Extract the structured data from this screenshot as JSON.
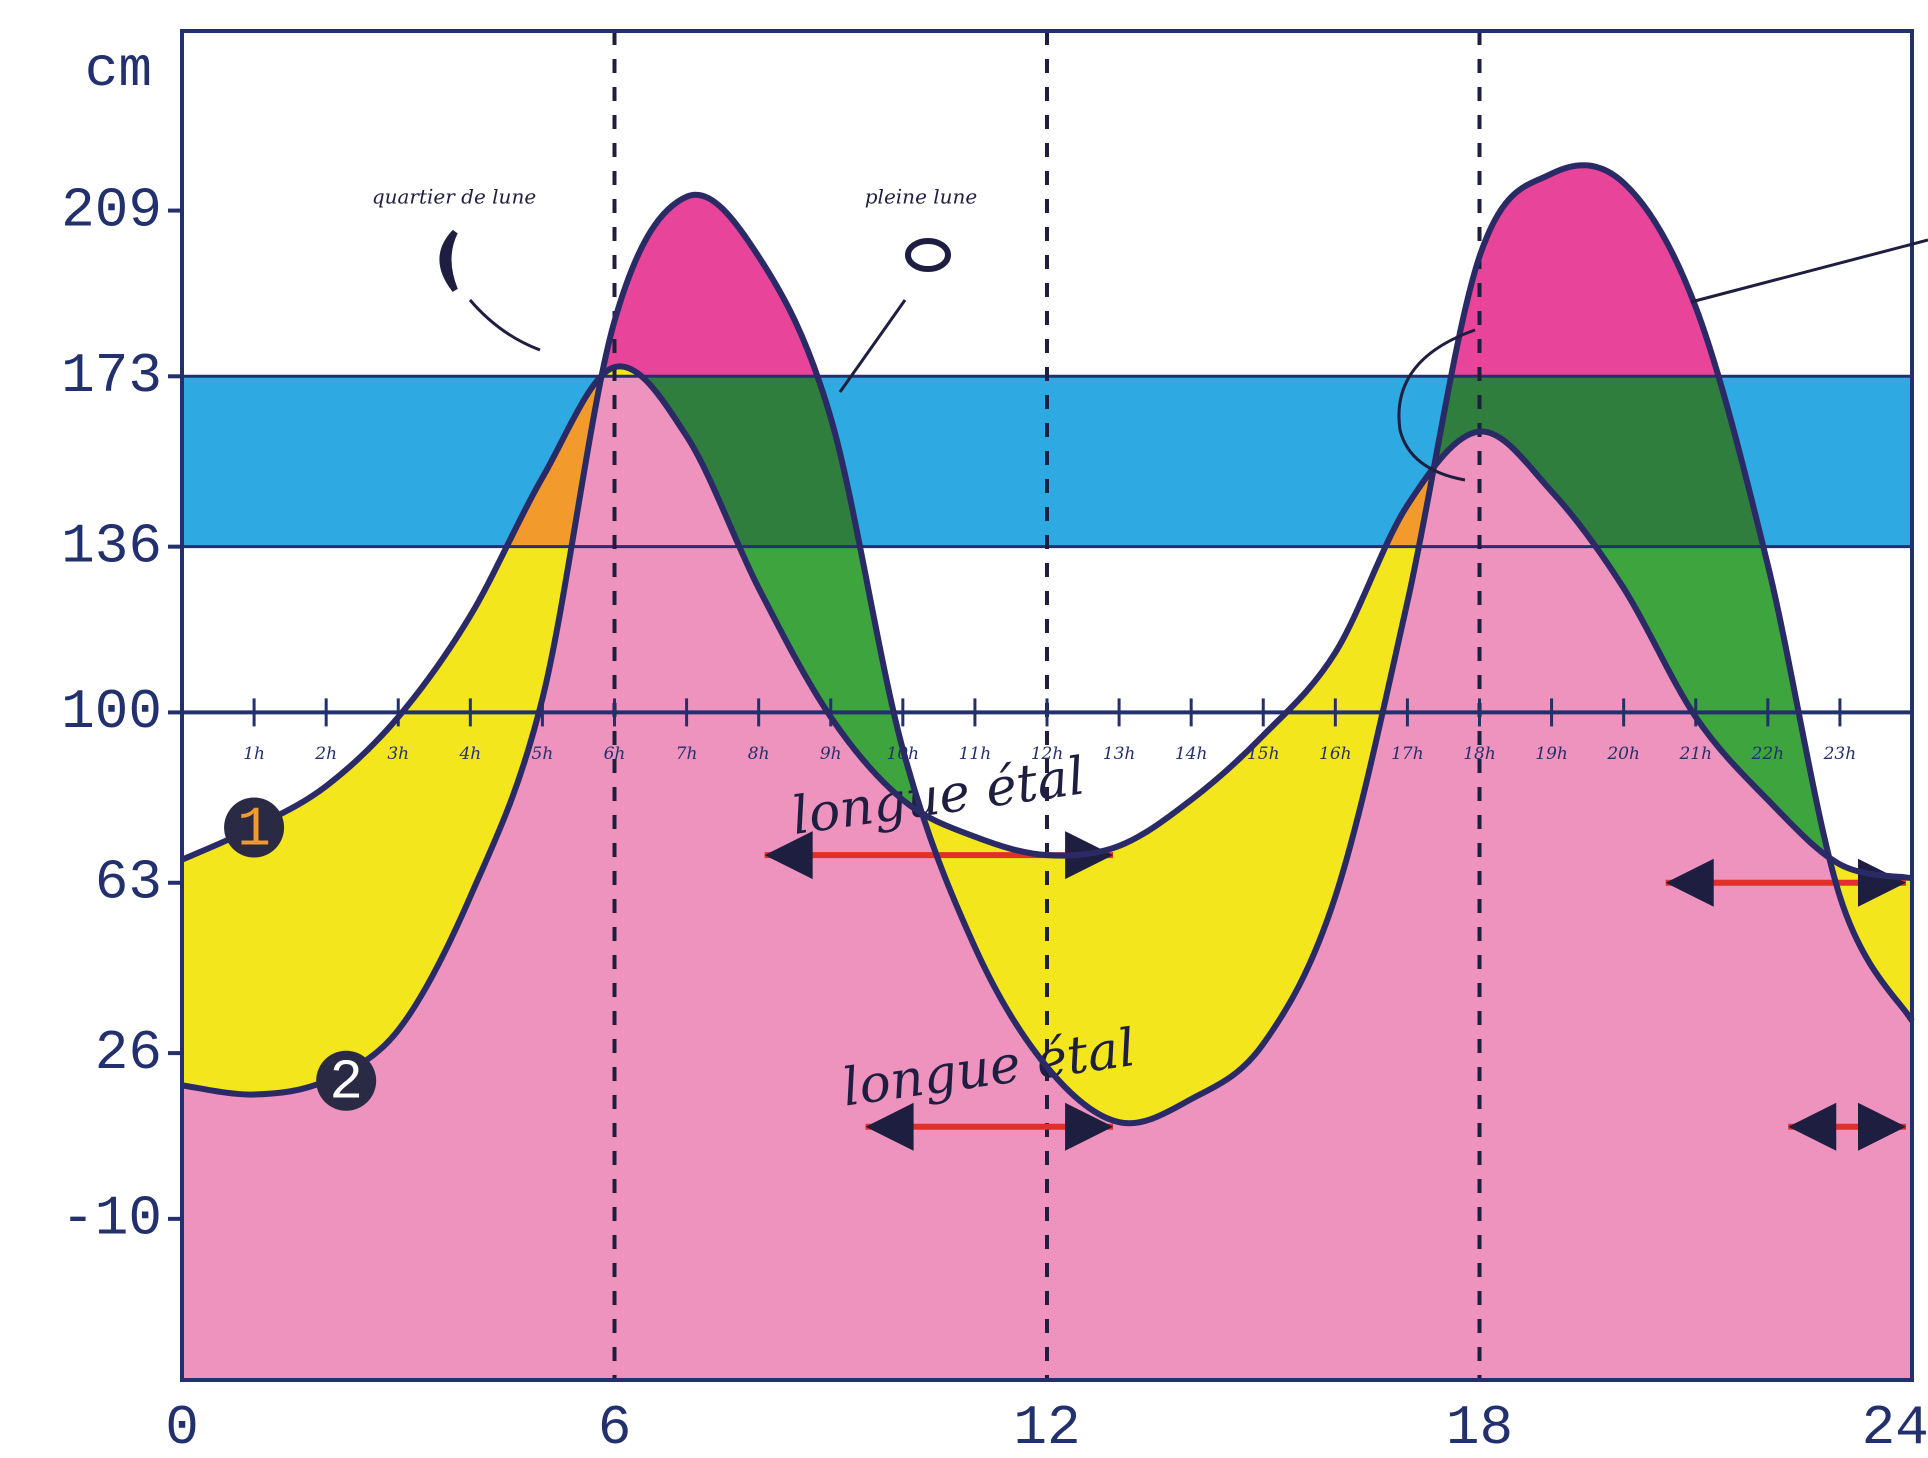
{
  "chart_data": {
    "type": "line",
    "y_label": "cm",
    "x": [
      0,
      1,
      2,
      3,
      4,
      5,
      6,
      7,
      8,
      9,
      10,
      11,
      12,
      13,
      14,
      15,
      16,
      17,
      18,
      19,
      20,
      21,
      22,
      23,
      24
    ],
    "series": [
      {
        "name": "1",
        "color": "#2a2a66",
        "values": [
          68,
          75,
          84,
          99,
          121,
          151,
          175,
          160,
          127,
          99,
          81,
          73,
          69,
          71,
          81,
          95,
          113,
          145,
          161,
          148,
          127,
          99,
          81,
          67,
          64
        ]
      },
      {
        "name": "2",
        "color": "#2a2a66",
        "values": [
          19,
          17,
          20,
          31,
          60,
          103,
          185,
          212,
          199,
          164,
          92,
          49,
          23,
          11,
          16,
          28,
          60,
          124,
          199,
          217,
          215,
          188,
          132,
          60,
          33
        ]
      }
    ],
    "xlim": [
      0,
      24
    ],
    "ylim": [
      -45,
      248
    ],
    "xticks": [
      0,
      6,
      12,
      18,
      {
        "value": 24,
        "label": "24h"
      }
    ],
    "yticks": [
      -10,
      26,
      63,
      100,
      136,
      173,
      209
    ],
    "minor_xticks": [
      {
        "value": 1,
        "label": "1h"
      },
      {
        "value": 2,
        "label": "2h"
      },
      {
        "value": 3,
        "label": "3h"
      },
      {
        "value": 4,
        "label": "4h"
      },
      {
        "value": 5,
        "label": "5h"
      },
      {
        "value": 6,
        "label": "6h"
      },
      {
        "value": 7,
        "label": "7h"
      },
      {
        "value": 8,
        "label": "8h"
      },
      {
        "value": 9,
        "label": "9h"
      },
      {
        "value": 10,
        "label": "10h"
      },
      {
        "value": 11,
        "label": "11h"
      },
      {
        "value": 12,
        "label": "12h"
      },
      {
        "value": 13,
        "label": "13h"
      },
      {
        "value": 14,
        "label": "14h"
      },
      {
        "value": 15,
        "label": "15h"
      },
      {
        "value": 16,
        "label": "16h"
      },
      {
        "value": 17,
        "label": "17h"
      },
      {
        "value": 18,
        "label": "18h"
      },
      {
        "value": 19,
        "label": "19h"
      },
      {
        "value": 20,
        "label": "20h"
      },
      {
        "value": 21,
        "label": "21h"
      },
      {
        "value": 22,
        "label": "22h"
      },
      {
        "value": 23,
        "label": "23h"
      }
    ],
    "reference_line": 100,
    "band": {
      "from": 136,
      "to": 173,
      "color": "#2fa9e1"
    },
    "slack_periods": [
      {
        "label": "longue étal",
        "from": 8,
        "to": 13,
        "level": 69
      },
      {
        "label": "longue étal",
        "from": 9.4,
        "to": 13,
        "level": 10
      },
      {
        "from": 20.5,
        "to": 24,
        "level": 63
      },
      {
        "from": 22.2,
        "to": 24,
        "level": 10
      }
    ],
    "annotations": [
      "quartier de lune",
      "pleine lune"
    ],
    "grid": true
  }
}
